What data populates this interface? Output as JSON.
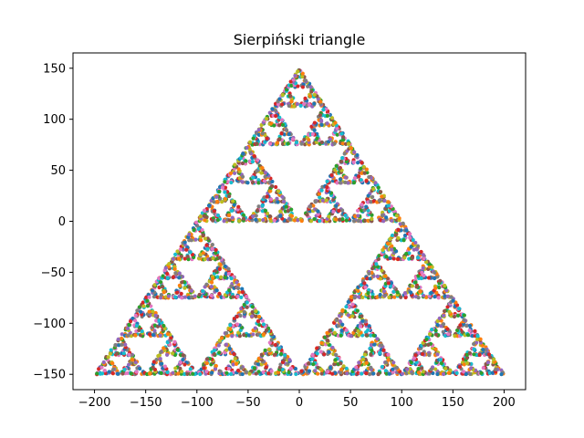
{
  "chart_data": {
    "type": "scatter",
    "title": "Sierpiński triangle",
    "xlabel": "",
    "ylabel": "",
    "xlim": [
      -221,
      221
    ],
    "ylim": [
      -165,
      165
    ],
    "x_ticks": [
      -200,
      -150,
      -100,
      -50,
      0,
      50,
      100,
      150,
      200
    ],
    "y_ticks": [
      -150,
      -100,
      -50,
      0,
      50,
      100,
      150
    ],
    "grid": false,
    "legend": "none",
    "vertices": [
      {
        "x": -200,
        "y": -150
      },
      {
        "x": 200,
        "y": -150
      },
      {
        "x": 0,
        "y": 150
      }
    ],
    "fractal_depth": 6,
    "marker": "dot",
    "palette": [
      "#1f77b4",
      "#ff7f0e",
      "#2ca02c",
      "#d62728",
      "#9467bd",
      "#8c564b",
      "#e377c2",
      "#7f7f7f",
      "#bcbd22",
      "#17becf"
    ]
  }
}
